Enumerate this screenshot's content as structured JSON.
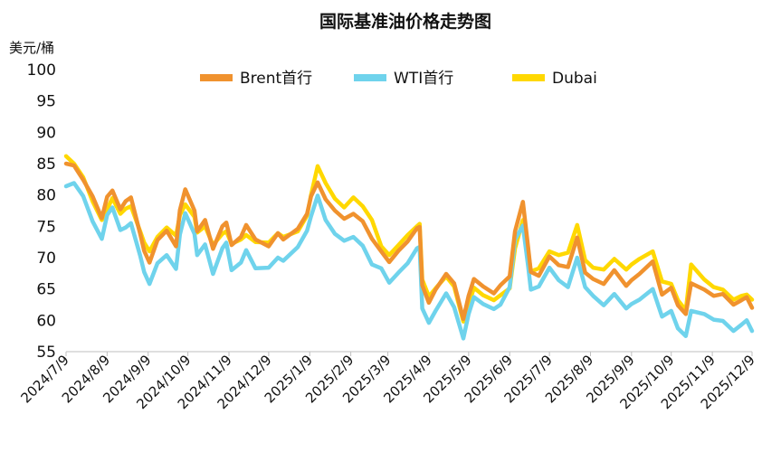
{
  "colors": {
    "brent": "#F0922E",
    "wti": "#6FD3EC",
    "dubai": "#FFD800",
    "axis": "#bfbfbf"
  },
  "chart_data": {
    "type": "line",
    "title": "国际基准油价格走势图",
    "ylabel": "美元/桶",
    "xlabel": "",
    "ylim": [
      55,
      100
    ],
    "yticks": [
      55,
      60,
      65,
      70,
      75,
      80,
      85,
      90,
      95,
      100
    ],
    "xlim": [
      "2024-07-09",
      "2025-12-09"
    ],
    "xticks": [
      "2024/7/9",
      "2024/8/9",
      "2024/9/9",
      "2024/10/9",
      "2024/11/9",
      "2024/12/9",
      "2025/1/9",
      "2025/2/9",
      "2025/3/9",
      "2025/4/9",
      "2025/5/9",
      "2025/6/9",
      "2025/7/9",
      "2025/8/9",
      "2025/9/9",
      "2025/10/9",
      "2025/11/9",
      "2025/12/9"
    ],
    "grid": false,
    "legend_position": "top",
    "series": [
      {
        "name": "Brent首行",
        "color_key": "brent",
        "points": [
          [
            "2024-07-09",
            85.0
          ],
          [
            "2024-07-15",
            84.7
          ],
          [
            "2024-07-22",
            82.4
          ],
          [
            "2024-07-29",
            79.8
          ],
          [
            "2024-08-05",
            76.3
          ],
          [
            "2024-08-09",
            79.7
          ],
          [
            "2024-08-13",
            80.7
          ],
          [
            "2024-08-19",
            77.7
          ],
          [
            "2024-08-23",
            79.0
          ],
          [
            "2024-08-27",
            79.6
          ],
          [
            "2024-09-03",
            73.8
          ],
          [
            "2024-09-06",
            71.1
          ],
          [
            "2024-09-10",
            69.2
          ],
          [
            "2024-09-16",
            72.8
          ],
          [
            "2024-09-23",
            74.3
          ],
          [
            "2024-09-30",
            71.8
          ],
          [
            "2024-10-03",
            77.6
          ],
          [
            "2024-10-07",
            80.9
          ],
          [
            "2024-10-14",
            77.5
          ],
          [
            "2024-10-16",
            74.2
          ],
          [
            "2024-10-22",
            76.0
          ],
          [
            "2024-10-28",
            71.4
          ],
          [
            "2024-11-04",
            75.0
          ],
          [
            "2024-11-07",
            75.6
          ],
          [
            "2024-11-11",
            72.0
          ],
          [
            "2024-11-18",
            73.3
          ],
          [
            "2024-11-22",
            75.2
          ],
          [
            "2024-11-29",
            72.9
          ],
          [
            "2024-12-09",
            71.8
          ],
          [
            "2024-12-16",
            73.9
          ],
          [
            "2024-12-20",
            72.9
          ],
          [
            "2024-12-31",
            74.6
          ],
          [
            "2025-01-07",
            77.0
          ],
          [
            "2025-01-10",
            79.8
          ],
          [
            "2025-01-15",
            82.0
          ],
          [
            "2025-01-21",
            79.3
          ],
          [
            "2025-01-28",
            77.5
          ],
          [
            "2025-02-04",
            76.2
          ],
          [
            "2025-02-11",
            77.0
          ],
          [
            "2025-02-18",
            75.8
          ],
          [
            "2025-02-25",
            73.0
          ],
          [
            "2025-03-04",
            71.0
          ],
          [
            "2025-03-10",
            69.3
          ],
          [
            "2025-03-17",
            71.1
          ],
          [
            "2025-03-24",
            72.6
          ],
          [
            "2025-03-31",
            74.7
          ],
          [
            "2025-04-02",
            74.9
          ],
          [
            "2025-04-04",
            65.6
          ],
          [
            "2025-04-09",
            62.8
          ],
          [
            "2025-04-14",
            64.9
          ],
          [
            "2025-04-22",
            67.4
          ],
          [
            "2025-04-28",
            65.9
          ],
          [
            "2025-05-05",
            60.2
          ],
          [
            "2025-05-09",
            63.9
          ],
          [
            "2025-05-13",
            66.6
          ],
          [
            "2025-05-20",
            65.4
          ],
          [
            "2025-05-28",
            64.3
          ],
          [
            "2025-06-02",
            65.6
          ],
          [
            "2025-06-09",
            67.0
          ],
          [
            "2025-06-13",
            74.2
          ],
          [
            "2025-06-19",
            78.9
          ],
          [
            "2025-06-23",
            71.5
          ],
          [
            "2025-06-25",
            67.7
          ],
          [
            "2025-07-01",
            67.1
          ],
          [
            "2025-07-09",
            70.2
          ],
          [
            "2025-07-16",
            68.8
          ],
          [
            "2025-07-23",
            68.5
          ],
          [
            "2025-07-30",
            73.2
          ],
          [
            "2025-08-05",
            67.6
          ],
          [
            "2025-08-11",
            66.6
          ],
          [
            "2025-08-19",
            65.8
          ],
          [
            "2025-08-27",
            68.0
          ],
          [
            "2025-09-05",
            65.5
          ],
          [
            "2025-09-09",
            66.4
          ],
          [
            "2025-09-15",
            67.4
          ],
          [
            "2025-09-25",
            69.4
          ],
          [
            "2025-10-02",
            64.1
          ],
          [
            "2025-10-09",
            65.2
          ],
          [
            "2025-10-14",
            62.4
          ],
          [
            "2025-10-20",
            61.0
          ],
          [
            "2025-10-24",
            65.9
          ],
          [
            "2025-11-03",
            64.9
          ],
          [
            "2025-11-10",
            63.9
          ],
          [
            "2025-11-17",
            64.2
          ],
          [
            "2025-11-25",
            62.5
          ],
          [
            "2025-12-01",
            63.2
          ],
          [
            "2025-12-05",
            63.7
          ],
          [
            "2025-12-09",
            62.0
          ]
        ]
      },
      {
        "name": "WTI首行",
        "color_key": "wti",
        "points": [
          [
            "2024-07-09",
            81.4
          ],
          [
            "2024-07-15",
            81.9
          ],
          [
            "2024-07-22",
            79.8
          ],
          [
            "2024-07-29",
            75.8
          ],
          [
            "2024-08-05",
            73.0
          ],
          [
            "2024-08-09",
            76.8
          ],
          [
            "2024-08-13",
            78.0
          ],
          [
            "2024-08-19",
            74.4
          ],
          [
            "2024-08-23",
            74.8
          ],
          [
            "2024-08-27",
            75.5
          ],
          [
            "2024-09-03",
            70.3
          ],
          [
            "2024-09-06",
            67.7
          ],
          [
            "2024-09-10",
            65.8
          ],
          [
            "2024-09-16",
            69.1
          ],
          [
            "2024-09-23",
            70.4
          ],
          [
            "2024-09-30",
            68.2
          ],
          [
            "2024-10-03",
            73.7
          ],
          [
            "2024-10-07",
            77.1
          ],
          [
            "2024-10-14",
            73.8
          ],
          [
            "2024-10-16",
            70.4
          ],
          [
            "2024-10-22",
            72.1
          ],
          [
            "2024-10-28",
            67.4
          ],
          [
            "2024-11-04",
            71.5
          ],
          [
            "2024-11-07",
            72.4
          ],
          [
            "2024-11-11",
            68.0
          ],
          [
            "2024-11-18",
            69.2
          ],
          [
            "2024-11-22",
            71.2
          ],
          [
            "2024-11-29",
            68.3
          ],
          [
            "2024-12-09",
            68.4
          ],
          [
            "2024-12-16",
            70.0
          ],
          [
            "2024-12-20",
            69.5
          ],
          [
            "2024-12-31",
            71.7
          ],
          [
            "2025-01-07",
            74.3
          ],
          [
            "2025-01-10",
            76.6
          ],
          [
            "2025-01-15",
            79.9
          ],
          [
            "2025-01-21",
            76.0
          ],
          [
            "2025-01-28",
            73.8
          ],
          [
            "2025-02-04",
            72.7
          ],
          [
            "2025-02-11",
            73.3
          ],
          [
            "2025-02-18",
            71.9
          ],
          [
            "2025-02-25",
            68.9
          ],
          [
            "2025-03-04",
            68.3
          ],
          [
            "2025-03-10",
            66.0
          ],
          [
            "2025-03-17",
            67.6
          ],
          [
            "2025-03-24",
            69.1
          ],
          [
            "2025-03-31",
            71.5
          ],
          [
            "2025-04-02",
            71.7
          ],
          [
            "2025-04-04",
            61.9
          ],
          [
            "2025-04-09",
            59.6
          ],
          [
            "2025-04-14",
            61.5
          ],
          [
            "2025-04-22",
            64.3
          ],
          [
            "2025-04-28",
            62.1
          ],
          [
            "2025-05-05",
            57.1
          ],
          [
            "2025-05-09",
            61.0
          ],
          [
            "2025-05-13",
            63.7
          ],
          [
            "2025-05-20",
            62.6
          ],
          [
            "2025-05-28",
            61.8
          ],
          [
            "2025-06-02",
            62.5
          ],
          [
            "2025-06-09",
            65.3
          ],
          [
            "2025-06-13",
            72.9
          ],
          [
            "2025-06-19",
            75.1
          ],
          [
            "2025-06-23",
            68.5
          ],
          [
            "2025-06-25",
            64.9
          ],
          [
            "2025-07-01",
            65.4
          ],
          [
            "2025-07-09",
            68.4
          ],
          [
            "2025-07-16",
            66.4
          ],
          [
            "2025-07-23",
            65.3
          ],
          [
            "2025-07-30",
            70.0
          ],
          [
            "2025-08-05",
            65.3
          ],
          [
            "2025-08-11",
            63.9
          ],
          [
            "2025-08-19",
            62.4
          ],
          [
            "2025-08-27",
            64.2
          ],
          [
            "2025-09-05",
            61.9
          ],
          [
            "2025-09-09",
            62.6
          ],
          [
            "2025-09-15",
            63.3
          ],
          [
            "2025-09-25",
            65.0
          ],
          [
            "2025-10-02",
            60.6
          ],
          [
            "2025-10-09",
            61.5
          ],
          [
            "2025-10-14",
            58.7
          ],
          [
            "2025-10-20",
            57.5
          ],
          [
            "2025-10-24",
            61.5
          ],
          [
            "2025-11-03",
            61.0
          ],
          [
            "2025-11-10",
            60.1
          ],
          [
            "2025-11-17",
            59.9
          ],
          [
            "2025-11-25",
            58.3
          ],
          [
            "2025-12-01",
            59.3
          ],
          [
            "2025-12-05",
            60.0
          ],
          [
            "2025-12-09",
            58.3
          ]
        ]
      },
      {
        "name": "Dubai",
        "color_key": "dubai",
        "points": [
          [
            "2024-07-09",
            86.2
          ],
          [
            "2024-07-15",
            85.0
          ],
          [
            "2024-07-22",
            82.8
          ],
          [
            "2024-07-29",
            79.0
          ],
          [
            "2024-08-05",
            76.0
          ],
          [
            "2024-08-09",
            77.7
          ],
          [
            "2024-08-13",
            79.5
          ],
          [
            "2024-08-19",
            77.0
          ],
          [
            "2024-08-23",
            77.8
          ],
          [
            "2024-08-27",
            78.2
          ],
          [
            "2024-09-03",
            74.2
          ],
          [
            "2024-09-06",
            72.4
          ],
          [
            "2024-09-10",
            71.0
          ],
          [
            "2024-09-16",
            73.3
          ],
          [
            "2024-09-23",
            74.8
          ],
          [
            "2024-09-30",
            73.5
          ],
          [
            "2024-10-03",
            76.8
          ],
          [
            "2024-10-07",
            78.5
          ],
          [
            "2024-10-14",
            76.5
          ],
          [
            "2024-10-16",
            74.0
          ],
          [
            "2024-10-22",
            75.0
          ],
          [
            "2024-10-28",
            72.0
          ],
          [
            "2024-11-04",
            73.8
          ],
          [
            "2024-11-07",
            74.2
          ],
          [
            "2024-11-11",
            72.2
          ],
          [
            "2024-11-18",
            72.9
          ],
          [
            "2024-11-22",
            73.6
          ],
          [
            "2024-11-29",
            72.5
          ],
          [
            "2024-12-09",
            72.4
          ],
          [
            "2024-12-16",
            73.9
          ],
          [
            "2024-12-20",
            73.3
          ],
          [
            "2024-12-31",
            74.2
          ],
          [
            "2025-01-07",
            76.7
          ],
          [
            "2025-01-10",
            80.0
          ],
          [
            "2025-01-15",
            84.6
          ],
          [
            "2025-01-21",
            81.9
          ],
          [
            "2025-01-28",
            79.4
          ],
          [
            "2025-02-04",
            78.0
          ],
          [
            "2025-02-11",
            79.6
          ],
          [
            "2025-02-18",
            78.2
          ],
          [
            "2025-02-25",
            76.0
          ],
          [
            "2025-03-04",
            71.8
          ],
          [
            "2025-03-10",
            70.4
          ],
          [
            "2025-03-17",
            72.0
          ],
          [
            "2025-03-24",
            73.6
          ],
          [
            "2025-03-31",
            75.0
          ],
          [
            "2025-04-02",
            75.4
          ],
          [
            "2025-04-04",
            66.5
          ],
          [
            "2025-04-09",
            63.8
          ],
          [
            "2025-04-14",
            65.1
          ],
          [
            "2025-04-22",
            67.0
          ],
          [
            "2025-04-28",
            65.4
          ],
          [
            "2025-05-05",
            59.8
          ],
          [
            "2025-05-09",
            62.5
          ],
          [
            "2025-05-13",
            65.2
          ],
          [
            "2025-05-20",
            64.0
          ],
          [
            "2025-05-28",
            63.2
          ],
          [
            "2025-06-02",
            64.0
          ],
          [
            "2025-06-09",
            65.1
          ],
          [
            "2025-06-13",
            71.5
          ],
          [
            "2025-06-19",
            76.0
          ],
          [
            "2025-06-23",
            70.8
          ],
          [
            "2025-06-25",
            67.8
          ],
          [
            "2025-07-01",
            68.3
          ],
          [
            "2025-07-09",
            71.0
          ],
          [
            "2025-07-16",
            70.4
          ],
          [
            "2025-07-23",
            70.8
          ],
          [
            "2025-07-30",
            75.2
          ],
          [
            "2025-08-05",
            69.6
          ],
          [
            "2025-08-11",
            68.4
          ],
          [
            "2025-08-19",
            68.1
          ],
          [
            "2025-08-27",
            69.8
          ],
          [
            "2025-09-05",
            68.1
          ],
          [
            "2025-09-09",
            68.9
          ],
          [
            "2025-09-15",
            69.8
          ],
          [
            "2025-09-25",
            71.0
          ],
          [
            "2025-10-02",
            66.2
          ],
          [
            "2025-10-09",
            65.8
          ],
          [
            "2025-10-14",
            63.2
          ],
          [
            "2025-10-20",
            61.6
          ],
          [
            "2025-10-24",
            68.9
          ],
          [
            "2025-11-03",
            66.5
          ],
          [
            "2025-11-10",
            65.3
          ],
          [
            "2025-11-17",
            64.9
          ],
          [
            "2025-11-25",
            63.3
          ],
          [
            "2025-12-01",
            63.9
          ],
          [
            "2025-12-05",
            64.1
          ],
          [
            "2025-12-09",
            63.3
          ]
        ]
      }
    ]
  }
}
